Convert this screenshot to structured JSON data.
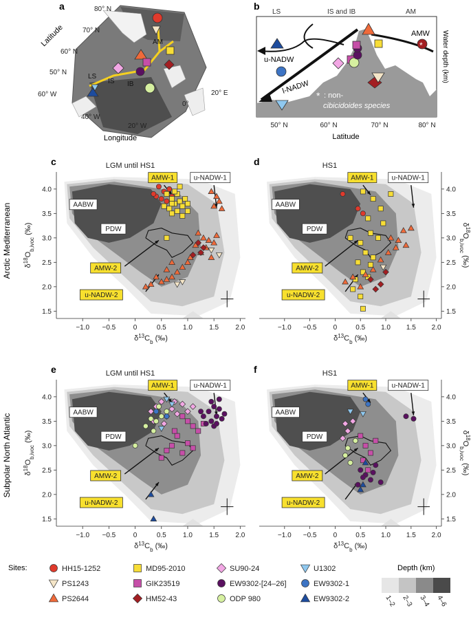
{
  "panel_letters": {
    "a": "a",
    "b": "b",
    "c": "c",
    "d": "d",
    "e": "e",
    "f": "f"
  },
  "map": {
    "lat_axis_label": "Latitude",
    "lon_axis_label": "Longitude",
    "lat_ticks": [
      "80° N",
      "70° N",
      "60° N",
      "50° N",
      "60° W"
    ],
    "lon_ticks": [
      "40° W",
      "20° W",
      "0°",
      "20° E"
    ],
    "region_labels": [
      "LS",
      "IS",
      "IB",
      "AM"
    ]
  },
  "section": {
    "top_labels": [
      "LS",
      "IS and IB",
      "AM"
    ],
    "right_label": "Water depth (km)",
    "x_label": "Latitude",
    "x_ticks": [
      "50° N",
      "60° N",
      "70° N",
      "80° N"
    ],
    "water_masses": [
      "u-NADW",
      "l-NADW",
      "AMW"
    ],
    "non_cib_line1": ": non-",
    "non_cib_line2": "cibicidoides species"
  },
  "row_labels": {
    "top": "Arctic Mediterranean",
    "bottom": "Subpolar North Atlantic"
  },
  "axis": {
    "x_label_main": "δ",
    "x_label_sup": "13",
    "x_label_rest": "C",
    "x_label_sub": "b",
    "x_label_unit": " (‰)",
    "y_label_main": "δ",
    "y_label_sup": "18",
    "y_label_rest": "O",
    "y_label_sub": "b,ivoc",
    "y_label_unit": " (‰)",
    "x_ticks": [
      "−1.0",
      "−0.5",
      "0",
      "0.5",
      "1.0",
      "1.5",
      "2.0"
    ],
    "y_ticks": [
      "1.5",
      "2.0",
      "2.5",
      "3.0",
      "3.5",
      "4.0"
    ]
  },
  "water_mass_boxes": {
    "aabw": "AABW",
    "pdw": "PDW",
    "amw1": "AMW-1",
    "amw2": "AMW-2",
    "unadw1": "u-NADW-1",
    "unadw2": "u-NADW-2"
  },
  "colors": {
    "HH15-1252": "#e03a2c",
    "PS1243": "#f5e6c8",
    "PS2644": "#ef6a3a",
    "MD95-2010": "#f7dd37",
    "GIK23519": "#c64fa8",
    "HM52-43": "#a31e22",
    "SU90-24": "#f2a7e4",
    "EW9302-24-26": "#5a1060",
    "ODP980": "#d6f0a0",
    "U1302": "#8fc8ef",
    "EW9302-1": "#3d74c4",
    "EW9302-2": "#1d4c9e",
    "yellow_box": "#f8e02e"
  },
  "legend": {
    "sites_label": "Sites:",
    "entries": [
      "HH15-1252",
      "PS1243",
      "PS2644",
      "MD95-2010",
      "GIK23519",
      "HM52-43",
      "SU90-24",
      "EW9302-[24–26]",
      "ODP 980",
      "U1302",
      "EW9302-1",
      "EW9302-2"
    ],
    "depth_title": "Depth (km)",
    "depth_bins": [
      "1–2",
      "2–3",
      "3–4",
      "4–6"
    ]
  },
  "chart_data": [
    {
      "panel": "c",
      "type": "scatter",
      "title": "LGM until HS1",
      "xlabel": "δ13Cb (‰)",
      "ylabel": "δ18Ob,ivoc (‰)",
      "xlim": [
        -1.5,
        2.1
      ],
      "ylim": [
        1.35,
        4.35
      ],
      "series": [
        {
          "name": "HH15-1252",
          "points": [
            [
              0.45,
              4.05
            ],
            [
              0.55,
              3.95
            ],
            [
              0.65,
              4.0
            ],
            [
              0.4,
              3.85
            ],
            [
              0.6,
              3.75
            ],
            [
              0.35,
              3.9
            ],
            [
              0.7,
              3.85
            ],
            [
              0.5,
              3.8
            ]
          ]
        },
        {
          "name": "MD95-2010",
          "points": [
            [
              0.6,
              3.9
            ],
            [
              0.7,
              3.8
            ],
            [
              0.75,
              3.7
            ],
            [
              0.8,
              3.9
            ],
            [
              0.85,
              3.75
            ],
            [
              0.65,
              3.6
            ],
            [
              0.9,
              3.65
            ],
            [
              0.7,
              3.5
            ],
            [
              0.8,
              3.55
            ],
            [
              0.95,
              3.8
            ],
            [
              1.0,
              3.7
            ],
            [
              0.75,
              3.95
            ],
            [
              0.85,
              4.05
            ],
            [
              0.55,
              3.65
            ],
            [
              0.9,
              3.45
            ],
            [
              0.6,
              3.0
            ],
            [
              1.0,
              3.55
            ],
            [
              0.7,
              3.7
            ]
          ]
        },
        {
          "name": "PS2644",
          "points": [
            [
              1.45,
              3.95
            ],
            [
              1.55,
              3.85
            ],
            [
              1.6,
              3.75
            ],
            [
              1.5,
              3.65
            ],
            [
              1.65,
              3.6
            ],
            [
              1.2,
              3.1
            ],
            [
              1.3,
              3.0
            ],
            [
              1.4,
              2.95
            ],
            [
              1.5,
              2.9
            ],
            [
              1.35,
              2.8
            ],
            [
              1.25,
              2.7
            ],
            [
              1.45,
              2.6
            ],
            [
              1.55,
              3.05
            ],
            [
              1.15,
              2.85
            ],
            [
              1.05,
              2.6
            ],
            [
              1.0,
              2.5
            ],
            [
              0.9,
              2.4
            ],
            [
              0.8,
              2.3
            ],
            [
              0.7,
              2.2
            ],
            [
              0.6,
              2.15
            ],
            [
              0.5,
              2.1
            ],
            [
              0.4,
              2.2
            ],
            [
              0.3,
              2.05
            ],
            [
              0.2,
              2.0
            ],
            [
              0.6,
              2.35
            ],
            [
              0.7,
              2.5
            ]
          ]
        },
        {
          "name": "PS1243",
          "points": [
            [
              1.6,
              2.65
            ],
            [
              1.45,
              2.75
            ],
            [
              0.8,
              2.05
            ],
            [
              0.9,
              2.1
            ]
          ]
        },
        {
          "name": "HM52-43",
          "points": [
            [
              1.2,
              2.9
            ],
            [
              1.3,
              2.8
            ],
            [
              1.25,
              2.7
            ],
            [
              1.1,
              2.65
            ]
          ]
        }
      ]
    },
    {
      "panel": "d",
      "type": "scatter",
      "title": "HS1",
      "xlabel": "δ13Cb (‰)",
      "ylabel": "δ18Ob,ivoc (‰)",
      "xlim": [
        -1.5,
        2.1
      ],
      "ylim": [
        1.35,
        4.35
      ],
      "series": [
        {
          "name": "HH15-1252",
          "points": [
            [
              0.15,
              3.9
            ],
            [
              0.45,
              3.6
            ],
            [
              0.55,
              3.5
            ]
          ]
        },
        {
          "name": "MD95-2010",
          "points": [
            [
              0.55,
              3.95
            ],
            [
              0.75,
              3.8
            ],
            [
              0.9,
              3.6
            ],
            [
              1.1,
              3.9
            ],
            [
              0.65,
              3.4
            ],
            [
              0.95,
              3.3
            ],
            [
              0.7,
              3.1
            ],
            [
              0.85,
              3.0
            ],
            [
              0.5,
              2.9
            ],
            [
              0.6,
              2.7
            ],
            [
              0.75,
              2.6
            ],
            [
              0.45,
              2.5
            ],
            [
              0.55,
              2.3
            ],
            [
              0.4,
              2.15
            ],
            [
              0.65,
              2.2
            ],
            [
              0.35,
              1.95
            ],
            [
              0.5,
              1.8
            ],
            [
              0.55,
              1.55
            ],
            [
              0.7,
              2.45
            ],
            [
              0.3,
              3.0
            ]
          ]
        },
        {
          "name": "PS2644",
          "points": [
            [
              1.35,
              3.15
            ],
            [
              1.1,
              3.0
            ],
            [
              1.25,
              2.95
            ],
            [
              1.4,
              2.85
            ],
            [
              1.05,
              2.7
            ],
            [
              0.9,
              2.55
            ],
            [
              0.75,
              2.35
            ],
            [
              0.6,
              2.25
            ],
            [
              0.35,
              2.2
            ],
            [
              0.2,
              2.1
            ],
            [
              0.5,
              2.0
            ],
            [
              1.2,
              2.8
            ],
            [
              1.5,
              3.2
            ]
          ]
        },
        {
          "name": "PS1243",
          "points": [
            [
              0.95,
              2.4
            ]
          ]
        },
        {
          "name": "HM52-43",
          "points": [
            [
              0.8,
              1.95
            ],
            [
              0.9,
              2.05
            ],
            [
              0.7,
              2.15
            ],
            [
              1.0,
              2.3
            ]
          ]
        }
      ]
    },
    {
      "panel": "e",
      "type": "scatter",
      "title": "LGM until HS1",
      "xlabel": "δ13Cb (‰)",
      "ylabel": "δ18Ob,ivoc (‰)",
      "xlim": [
        -1.5,
        2.1
      ],
      "ylim": [
        1.35,
        4.35
      ],
      "series": [
        {
          "name": "SU90-24",
          "points": [
            [
              0.3,
              3.7
            ],
            [
              0.4,
              3.8
            ],
            [
              0.5,
              3.9
            ],
            [
              0.6,
              3.6
            ],
            [
              0.7,
              3.75
            ],
            [
              0.8,
              3.65
            ],
            [
              0.9,
              3.85
            ],
            [
              1.0,
              3.7
            ],
            [
              1.1,
              3.8
            ],
            [
              0.55,
              3.45
            ],
            [
              0.35,
              3.5
            ],
            [
              0.75,
              3.9
            ]
          ]
        },
        {
          "name": "ODP980",
          "points": [
            [
              0.0,
              3.0
            ],
            [
              0.2,
              3.4
            ],
            [
              0.3,
              3.55
            ],
            [
              0.4,
              3.5
            ],
            [
              0.5,
              3.6
            ],
            [
              0.35,
              3.3
            ],
            [
              0.6,
              3.7
            ],
            [
              0.45,
              3.8
            ]
          ]
        },
        {
          "name": "GIK23519",
          "points": [
            [
              0.9,
              3.6
            ],
            [
              1.0,
              3.5
            ],
            [
              1.1,
              3.4
            ],
            [
              1.2,
              3.3
            ],
            [
              1.3,
              3.45
            ],
            [
              0.8,
              3.2
            ],
            [
              0.7,
              3.0
            ],
            [
              0.6,
              2.9
            ],
            [
              0.9,
              2.85
            ],
            [
              1.0,
              3.05
            ],
            [
              1.1,
              2.95
            ],
            [
              0.5,
              2.75
            ],
            [
              0.75,
              3.3
            ]
          ]
        },
        {
          "name": "EW9302-24-26",
          "points": [
            [
              1.3,
              3.6
            ],
            [
              1.4,
              3.7
            ],
            [
              1.45,
              3.5
            ],
            [
              1.5,
              3.8
            ],
            [
              1.55,
              3.6
            ],
            [
              1.6,
              3.75
            ],
            [
              1.65,
              3.55
            ],
            [
              1.35,
              3.45
            ],
            [
              1.45,
              3.9
            ],
            [
              1.5,
              3.4
            ],
            [
              1.6,
              3.95
            ],
            [
              1.7,
              3.65
            ],
            [
              1.25,
              3.7
            ],
            [
              1.55,
              3.45
            ]
          ]
        },
        {
          "name": "U1302",
          "points": [
            [
              0.6,
              3.95
            ],
            [
              0.7,
              3.85
            ],
            [
              0.5,
              3.35
            ]
          ]
        },
        {
          "name": "EW9302-1",
          "points": [
            [
              0.4,
              3.7
            ],
            [
              0.6,
              3.6
            ]
          ]
        },
        {
          "name": "EW9302-2",
          "points": [
            [
              0.3,
              2.0
            ],
            [
              0.35,
              1.5
            ]
          ]
        }
      ]
    },
    {
      "panel": "f",
      "type": "scatter",
      "title": "HS1",
      "xlabel": "δ13Cb (‰)",
      "ylabel": "δ18Ob,ivoc (‰)",
      "xlim": [
        -1.5,
        2.1
      ],
      "ylim": [
        1.35,
        4.35
      ],
      "series": [
        {
          "name": "SU90-24",
          "points": [
            [
              0.2,
              3.45
            ],
            [
              0.25,
              3.3
            ],
            [
              0.35,
              3.5
            ],
            [
              0.15,
              3.15
            ]
          ]
        },
        {
          "name": "ODP980",
          "points": [
            [
              0.25,
              2.95
            ],
            [
              0.4,
              3.1
            ],
            [
              0.2,
              2.8
            ],
            [
              0.3,
              2.65
            ]
          ]
        },
        {
          "name": "GIK23519",
          "points": [
            [
              0.5,
              3.2
            ],
            [
              0.6,
              3.0
            ],
            [
              0.7,
              2.85
            ],
            [
              0.55,
              2.7
            ],
            [
              0.8,
              3.1
            ],
            [
              0.65,
              2.5
            ]
          ]
        },
        {
          "name": "EW9302-24-26",
          "points": [
            [
              1.4,
              3.6
            ],
            [
              1.55,
              3.55
            ],
            [
              0.5,
              2.5
            ],
            [
              0.6,
              2.4
            ],
            [
              0.7,
              2.3
            ],
            [
              0.45,
              2.2
            ],
            [
              0.8,
              2.6
            ],
            [
              0.9,
              2.25
            ],
            [
              0.55,
              2.35
            ],
            [
              0.75,
              2.45
            ]
          ]
        },
        {
          "name": "U1302",
          "points": [
            [
              0.3,
              3.7
            ],
            [
              0.55,
              3.65
            ]
          ]
        },
        {
          "name": "EW9302-1",
          "points": [
            [
              0.6,
              3.95
            ],
            [
              0.65,
              3.85
            ]
          ]
        },
        {
          "name": "EW9302-2",
          "points": [
            [
              0.5,
              2.1
            ],
            [
              0.55,
              2.2
            ],
            [
              0.6,
              2.65
            ]
          ]
        }
      ]
    }
  ]
}
